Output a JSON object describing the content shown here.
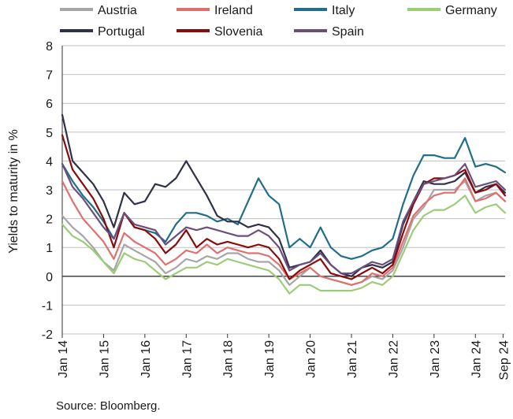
{
  "chart_data": {
    "type": "line",
    "ylabel": "Yields to maturity in %",
    "xlabel": "",
    "ylim": [
      -2,
      8
    ],
    "yticks": [
      -2,
      -1,
      0,
      1,
      2,
      3,
      4,
      5,
      6,
      7,
      8
    ],
    "xlim": [
      2014.0,
      2024.72
    ],
    "xtick_labels": [
      "Jan 14",
      "Jan 15",
      "Jan 16",
      "Jan 17",
      "Jan 18",
      "Jan 19",
      "Jan 20",
      "Jan 21",
      "Jan 22",
      "Jan 23",
      "Jan 24",
      "Sep 24"
    ],
    "xtick_values": [
      2014.0,
      2015.0,
      2016.0,
      2017.0,
      2018.0,
      2019.0,
      2020.0,
      2021.0,
      2022.0,
      2023.0,
      2024.0,
      2024.67
    ],
    "grid": "horizontal",
    "legend_position": "top",
    "series": [
      {
        "name": "Austria",
        "color": "#a6a6a6",
        "x": [
          2014.0,
          2014.25,
          2014.5,
          2014.75,
          2015.0,
          2015.25,
          2015.5,
          2015.75,
          2016.0,
          2016.25,
          2016.5,
          2016.75,
          2017.0,
          2017.25,
          2017.5,
          2017.75,
          2018.0,
          2018.25,
          2018.5,
          2018.75,
          2019.0,
          2019.25,
          2019.5,
          2019.75,
          2020.0,
          2020.25,
          2020.5,
          2020.75,
          2021.0,
          2021.25,
          2021.5,
          2021.75,
          2022.0,
          2022.25,
          2022.5,
          2022.75,
          2023.0,
          2023.25,
          2023.5,
          2023.75,
          2024.0,
          2024.25,
          2024.5,
          2024.72
        ],
        "y": [
          2.1,
          1.7,
          1.4,
          1.0,
          0.5,
          0.2,
          1.1,
          0.9,
          0.7,
          0.5,
          0.1,
          0.3,
          0.6,
          0.5,
          0.7,
          0.6,
          0.8,
          0.8,
          0.6,
          0.5,
          0.5,
          0.2,
          -0.3,
          0.0,
          0.3,
          0.0,
          -0.1,
          -0.2,
          -0.3,
          -0.2,
          0.0,
          -0.1,
          0.2,
          1.0,
          2.0,
          2.4,
          3.0,
          3.0,
          3.0,
          3.3,
          2.6,
          2.8,
          2.9,
          2.6
        ]
      },
      {
        "name": "Ireland",
        "color": "#e07070",
        "x": [
          2014.0,
          2014.25,
          2014.5,
          2014.75,
          2015.0,
          2015.25,
          2015.5,
          2015.75,
          2016.0,
          2016.25,
          2016.5,
          2016.75,
          2017.0,
          2017.25,
          2017.5,
          2017.75,
          2018.0,
          2018.25,
          2018.5,
          2018.75,
          2019.0,
          2019.25,
          2019.5,
          2019.75,
          2020.0,
          2020.25,
          2020.5,
          2020.75,
          2021.0,
          2021.25,
          2021.5,
          2021.75,
          2022.0,
          2022.25,
          2022.5,
          2022.75,
          2023.0,
          2023.25,
          2023.5,
          2023.75,
          2024.0,
          2024.25,
          2024.5,
          2024.72
        ],
        "y": [
          3.3,
          2.6,
          2.0,
          1.6,
          1.2,
          0.6,
          1.5,
          1.2,
          1.0,
          0.8,
          0.4,
          0.6,
          0.9,
          0.8,
          1.1,
          0.8,
          1.0,
          0.9,
          0.8,
          0.8,
          0.7,
          0.4,
          -0.1,
          0.1,
          0.3,
          0.0,
          -0.1,
          -0.2,
          -0.3,
          -0.2,
          0.1,
          0.0,
          0.3,
          1.2,
          2.1,
          2.5,
          2.8,
          2.9,
          2.9,
          3.4,
          2.6,
          2.7,
          2.9,
          2.6
        ]
      },
      {
        "name": "Italy",
        "color": "#1f6e8c",
        "x": [
          2014.0,
          2014.25,
          2014.5,
          2014.75,
          2015.0,
          2015.25,
          2015.5,
          2015.75,
          2016.0,
          2016.25,
          2016.5,
          2016.75,
          2017.0,
          2017.25,
          2017.5,
          2017.75,
          2018.0,
          2018.25,
          2018.5,
          2018.75,
          2019.0,
          2019.25,
          2019.5,
          2019.75,
          2020.0,
          2020.25,
          2020.5,
          2020.75,
          2021.0,
          2021.25,
          2021.5,
          2021.75,
          2022.0,
          2022.25,
          2022.5,
          2022.75,
          2023.0,
          2023.25,
          2023.5,
          2023.75,
          2024.0,
          2024.25,
          2024.5,
          2024.72
        ],
        "y": [
          3.9,
          3.3,
          2.8,
          2.4,
          1.9,
          1.3,
          2.2,
          1.7,
          1.6,
          1.5,
          1.2,
          1.8,
          2.2,
          2.2,
          2.1,
          1.9,
          2.0,
          1.8,
          2.6,
          3.4,
          2.8,
          2.5,
          1.0,
          1.3,
          1.0,
          1.7,
          1.0,
          0.7,
          0.6,
          0.7,
          0.9,
          1.0,
          1.3,
          2.5,
          3.5,
          4.2,
          4.2,
          4.1,
          4.1,
          4.8,
          3.8,
          3.9,
          3.8,
          3.6
        ]
      },
      {
        "name": "Germany",
        "color": "#9ccc78",
        "x": [
          2014.0,
          2014.25,
          2014.5,
          2014.75,
          2015.0,
          2015.25,
          2015.5,
          2015.75,
          2016.0,
          2016.25,
          2016.5,
          2016.75,
          2017.0,
          2017.25,
          2017.5,
          2017.75,
          2018.0,
          2018.25,
          2018.5,
          2018.75,
          2019.0,
          2019.25,
          2019.5,
          2019.75,
          2020.0,
          2020.25,
          2020.5,
          2020.75,
          2021.0,
          2021.25,
          2021.5,
          2021.75,
          2022.0,
          2022.25,
          2022.5,
          2022.75,
          2023.0,
          2023.25,
          2023.5,
          2023.75,
          2024.0,
          2024.25,
          2024.5,
          2024.72
        ],
        "y": [
          1.8,
          1.4,
          1.2,
          0.9,
          0.5,
          0.1,
          0.8,
          0.6,
          0.5,
          0.2,
          -0.1,
          0.1,
          0.3,
          0.3,
          0.5,
          0.4,
          0.6,
          0.5,
          0.4,
          0.3,
          0.2,
          -0.1,
          -0.6,
          -0.3,
          -0.3,
          -0.5,
          -0.5,
          -0.5,
          -0.5,
          -0.4,
          -0.2,
          -0.3,
          0.0,
          0.8,
          1.6,
          2.1,
          2.3,
          2.3,
          2.5,
          2.8,
          2.2,
          2.4,
          2.5,
          2.2
        ]
      },
      {
        "name": "Portugal",
        "color": "#2e3148",
        "x": [
          2014.0,
          2014.25,
          2014.5,
          2014.75,
          2015.0,
          2015.25,
          2015.5,
          2015.75,
          2016.0,
          2016.25,
          2016.5,
          2016.75,
          2017.0,
          2017.25,
          2017.5,
          2017.75,
          2018.0,
          2018.25,
          2018.5,
          2018.75,
          2019.0,
          2019.25,
          2019.5,
          2019.75,
          2020.0,
          2020.25,
          2020.5,
          2020.75,
          2021.0,
          2021.25,
          2021.5,
          2021.75,
          2022.0,
          2022.25,
          2022.5,
          2022.75,
          2023.0,
          2023.25,
          2023.5,
          2023.75,
          2024.0,
          2024.25,
          2024.5,
          2024.72
        ],
        "y": [
          5.6,
          4.0,
          3.6,
          3.2,
          2.6,
          1.7,
          2.9,
          2.5,
          2.6,
          3.2,
          3.1,
          3.4,
          4.0,
          3.4,
          2.8,
          2.1,
          1.9,
          1.9,
          1.7,
          1.8,
          1.7,
          1.3,
          0.3,
          0.4,
          0.5,
          0.9,
          0.4,
          0.1,
          0.0,
          0.3,
          0.4,
          0.3,
          0.5,
          1.8,
          2.6,
          3.3,
          3.2,
          3.2,
          3.3,
          3.6,
          2.9,
          3.1,
          3.2,
          2.9
        ]
      },
      {
        "name": "Slovenia",
        "color": "#8b0a0a",
        "x": [
          2014.0,
          2014.25,
          2014.5,
          2014.75,
          2015.0,
          2015.25,
          2015.5,
          2015.75,
          2016.0,
          2016.25,
          2016.5,
          2016.75,
          2017.0,
          2017.25,
          2017.5,
          2017.75,
          2018.0,
          2018.25,
          2018.5,
          2018.75,
          2019.0,
          2019.25,
          2019.5,
          2019.75,
          2020.0,
          2020.25,
          2020.5,
          2020.75,
          2021.0,
          2021.25,
          2021.5,
          2021.75,
          2022.0,
          2022.25,
          2022.5,
          2022.75,
          2023.0,
          2023.25,
          2023.5,
          2023.75,
          2024.0,
          2024.25,
          2024.5,
          2024.72
        ],
        "y": [
          4.9,
          3.7,
          3.2,
          2.7,
          2.0,
          1.0,
          2.2,
          1.7,
          1.6,
          1.3,
          0.8,
          1.1,
          1.6,
          1.0,
          1.3,
          1.1,
          1.2,
          1.1,
          1.0,
          1.1,
          1.0,
          0.6,
          -0.1,
          0.2,
          0.4,
          0.6,
          0.1,
          0.0,
          -0.1,
          0.1,
          0.3,
          0.1,
          0.4,
          1.5,
          2.5,
          3.2,
          3.4,
          3.4,
          3.5,
          3.7,
          2.9,
          3.0,
          3.2,
          2.8
        ]
      },
      {
        "name": "Spain",
        "color": "#6a4f7e",
        "x": [
          2014.0,
          2014.25,
          2014.5,
          2014.75,
          2015.0,
          2015.25,
          2015.5,
          2015.75,
          2016.0,
          2016.25,
          2016.5,
          2016.75,
          2017.0,
          2017.25,
          2017.5,
          2017.75,
          2018.0,
          2018.25,
          2018.5,
          2018.75,
          2019.0,
          2019.25,
          2019.5,
          2019.75,
          2020.0,
          2020.25,
          2020.5,
          2020.75,
          2021.0,
          2021.25,
          2021.5,
          2021.75,
          2022.0,
          2022.25,
          2022.5,
          2022.75,
          2023.0,
          2023.25,
          2023.5,
          2023.75,
          2024.0,
          2024.25,
          2024.5,
          2024.72
        ],
        "y": [
          3.9,
          3.1,
          2.7,
          2.2,
          1.7,
          1.3,
          2.2,
          1.8,
          1.7,
          1.6,
          1.1,
          1.4,
          1.7,
          1.6,
          1.7,
          1.6,
          1.5,
          1.4,
          1.4,
          1.6,
          1.4,
          1.0,
          0.2,
          0.4,
          0.5,
          0.8,
          0.4,
          0.1,
          0.1,
          0.3,
          0.5,
          0.4,
          0.6,
          1.9,
          2.6,
          3.2,
          3.3,
          3.4,
          3.5,
          3.9,
          3.1,
          3.2,
          3.3,
          3.0
        ]
      }
    ]
  },
  "legend": {
    "items": [
      {
        "label": "Austria",
        "color": "#a6a6a6"
      },
      {
        "label": "Ireland",
        "color": "#e07070"
      },
      {
        "label": "Italy",
        "color": "#1f6e8c"
      },
      {
        "label": "Germany",
        "color": "#9ccc78"
      },
      {
        "label": "Portugal",
        "color": "#2e3148"
      },
      {
        "label": "Slovenia",
        "color": "#8b0a0a"
      },
      {
        "label": "Spain",
        "color": "#6a4f7e"
      }
    ]
  },
  "source": "Source: Bloomberg."
}
